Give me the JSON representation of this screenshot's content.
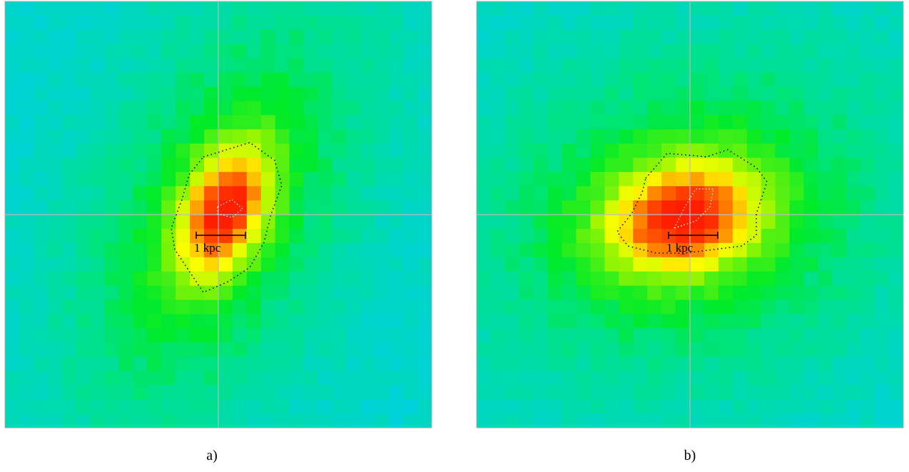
{
  "panels": [
    {
      "label": "a)",
      "scale_label": "1 kpc"
    },
    {
      "label": "b)",
      "scale_label": "1 kpc"
    }
  ]
}
